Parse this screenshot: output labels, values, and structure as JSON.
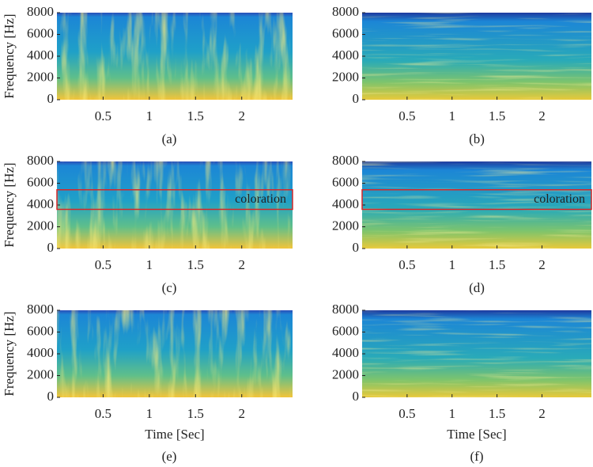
{
  "chart_data": [
    {
      "type": "heatmap",
      "caption": "(a)",
      "ylabel": "Frequency [Hz]",
      "xlim": [
        0,
        2.55
      ],
      "ylim": [
        0,
        8000
      ],
      "xticks": [
        0.5,
        1,
        1.5,
        2
      ],
      "yticks": [
        0,
        2000,
        4000,
        6000,
        8000
      ]
    },
    {
      "type": "heatmap",
      "caption": "(b)",
      "xlim": [
        0,
        2.55
      ],
      "ylim": [
        0,
        8000
      ],
      "xticks": [
        0.5,
        1,
        1.5,
        2
      ],
      "yticks": [
        0,
        2000,
        4000,
        6000,
        8000
      ]
    },
    {
      "type": "heatmap",
      "caption": "(c)",
      "ylabel": "Frequency [Hz]",
      "xlim": [
        0,
        2.55
      ],
      "ylim": [
        0,
        8000
      ],
      "xticks": [
        0.5,
        1,
        1.5,
        2
      ],
      "yticks": [
        0,
        2000,
        4000,
        6000,
        8000
      ],
      "highlight": {
        "label": "coloration",
        "ylim": [
          3600,
          5400
        ],
        "color": "#d62728"
      }
    },
    {
      "type": "heatmap",
      "caption": "(d)",
      "xlim": [
        0,
        2.55
      ],
      "ylim": [
        0,
        8000
      ],
      "xticks": [
        0.5,
        1,
        1.5,
        2
      ],
      "yticks": [
        0,
        2000,
        4000,
        6000,
        8000
      ],
      "highlight": {
        "label": "coloration",
        "ylim": [
          3600,
          5400
        ],
        "color": "#d62728"
      }
    },
    {
      "type": "heatmap",
      "caption": "(e)",
      "ylabel": "Frequency [Hz]",
      "xlabel": "Time [Sec]",
      "xlim": [
        0,
        2.55
      ],
      "ylim": [
        0,
        8000
      ],
      "xticks": [
        0.5,
        1,
        1.5,
        2
      ],
      "yticks": [
        0,
        2000,
        4000,
        6000,
        8000
      ]
    },
    {
      "type": "heatmap",
      "caption": "(f)",
      "xlabel": "Time [Sec]",
      "xlim": [
        0,
        2.55
      ],
      "ylim": [
        0,
        8000
      ],
      "xticks": [
        0.5,
        1,
        1.5,
        2
      ],
      "yticks": [
        0,
        2000,
        4000,
        6000,
        8000
      ]
    }
  ]
}
